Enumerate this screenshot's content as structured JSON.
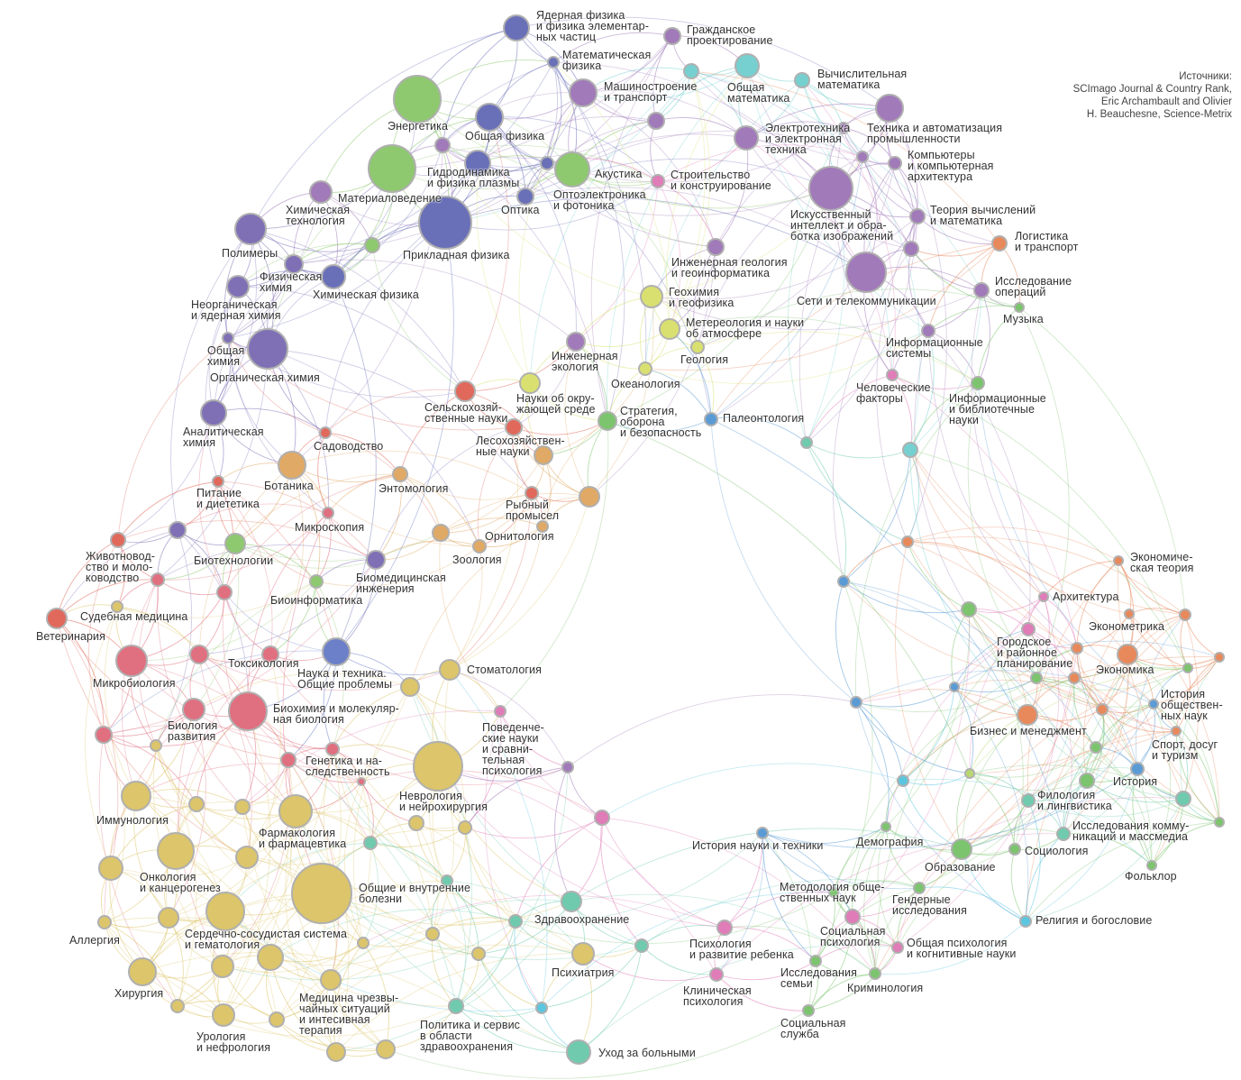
{
  "sources": "Источники:\nSCImago Journal & Country Rank,\nEric Archambault and Olivier\nH. Beauchesne, Science-Metrix",
  "palette": {
    "phys": "#6a70b8",
    "chem": "#7f70b6",
    "eng": "#a17ab9",
    "mat": "#8ec86f",
    "math": "#76d0d0",
    "earth": "#d9e070",
    "agro": "#e0695c",
    "eco": "#e0a965",
    "bio": "#e06f80",
    "sci": "#6b80c8",
    "med": "#dcc56a",
    "health": "#6fcaae",
    "psy": "#e07cb8",
    "soc": "#7cc46d",
    "econ": "#e8895c",
    "hist": "#5b9bd5",
    "lime": "#b9d870",
    "cyan": "#5bc6e0"
  },
  "nodes": [
    {
      "label": "Ядерная физика\nи физика элементар-\nных частиц",
      "group": "phys"
    },
    {
      "label": "Математическая\nфизика",
      "group": "phys"
    },
    {
      "label": "Гражданское\nпроектирование",
      "group": "eng"
    },
    {
      "label": "",
      "group": "math"
    },
    {
      "label": "Общая\nматематика",
      "group": "math"
    },
    {
      "label": "Вычислительная\nматематика",
      "group": "math"
    },
    {
      "label": "Машиностроение\nи транспорт",
      "group": "eng"
    },
    {
      "label": "Энергетика",
      "group": "mat"
    },
    {
      "label": "Общая физика",
      "group": "phys"
    },
    {
      "label": "",
      "group": "eng"
    },
    {
      "label": "Гидродинамика\nи физика плазмы",
      "group": "phys"
    },
    {
      "label": "Акустика",
      "group": "phys"
    },
    {
      "label": "Материаловедение",
      "group": "mat"
    },
    {
      "label": "Оптоэлектроника\nи фотоника",
      "group": "mat"
    },
    {
      "label": "Оптика",
      "group": "phys"
    },
    {
      "label": "Прикладная физика",
      "group": "phys"
    },
    {
      "label": "Химическая\nтехнология",
      "group": "eng"
    },
    {
      "label": "Полимеры",
      "group": "chem"
    },
    {
      "label": "",
      "group": "mat"
    },
    {
      "label": "Физическая\nхимия",
      "group": "chem"
    },
    {
      "label": "Химическая физика",
      "group": "phys"
    },
    {
      "label": "Неорганическая\nи ядерная химия",
      "group": "chem"
    },
    {
      "label": "Общая\nхимия",
      "group": "chem"
    },
    {
      "label": "Органическая химия",
      "group": "chem"
    },
    {
      "label": "Аналитическая\nхимия",
      "group": "chem"
    },
    {
      "label": "",
      "group": "eng"
    },
    {
      "label": "Строительство\nи конструирование",
      "group": "psy"
    },
    {
      "label": "Электротехника\nи электронная\nтехника",
      "group": "eng"
    },
    {
      "label": "Техника и автоматизация\nпромышленности",
      "group": "eng"
    },
    {
      "label": "",
      "group": "eng"
    },
    {
      "label": "",
      "group": "eng"
    },
    {
      "label": "Компьютеры\nи компьютерная\nархитектура",
      "group": "eng"
    },
    {
      "label": "Искусственный\nинтеллект и обра-\nботка изображений",
      "group": "eng"
    },
    {
      "label": "Теория вычислений\nи математика",
      "group": "eng"
    },
    {
      "label": "",
      "group": "eng"
    },
    {
      "label": "Сети и телекоммуникации",
      "group": "eng"
    },
    {
      "label": "Логистика\nи транспорт",
      "group": "econ"
    },
    {
      "label": "Исследование\nопераций",
      "group": "eng"
    },
    {
      "label": "Музыка",
      "group": "soc"
    },
    {
      "label": "Информационные\nсистемы",
      "group": "eng"
    },
    {
      "label": "Человеческие\nфакторы",
      "group": "psy"
    },
    {
      "label": "Информационные\nи библиотечные\nнауки",
      "group": "soc"
    },
    {
      "label": "Инженерная геология\nи геоинформатика",
      "group": "eng"
    },
    {
      "label": "Геохимия\nи геофизика",
      "group": "earth"
    },
    {
      "label": "Метереология и науки\nоб атмосфере",
      "group": "earth"
    },
    {
      "label": "Геология",
      "group": "earth"
    },
    {
      "label": "Океанология",
      "group": "earth"
    },
    {
      "label": "Палеонтология",
      "group": "hist"
    },
    {
      "label": "Науки об окру-\nжающей среде",
      "group": "earth"
    },
    {
      "label": "Стратегия,\nоборона\nи безопасность",
      "group": "soc"
    },
    {
      "label": "Инженерная\nэкология",
      "group": "eng"
    },
    {
      "label": "",
      "group": "health"
    },
    {
      "label": "",
      "group": "math"
    },
    {
      "label": "Сельскохозяй-\nственные науки",
      "group": "agro"
    },
    {
      "label": "Лесохозяйствен-\nные науки",
      "group": "agro"
    },
    {
      "label": "",
      "group": "eco"
    },
    {
      "label": "Садоводство",
      "group": "agro"
    },
    {
      "label": "Ботаника",
      "group": "eco"
    },
    {
      "label": "Энтомология",
      "group": "eco"
    },
    {
      "label": "Рыбный\nпромысел",
      "group": "agro"
    },
    {
      "label": "",
      "group": "eco"
    },
    {
      "label": "Орнитология",
      "group": "eco"
    },
    {
      "label": "",
      "group": "eco"
    },
    {
      "label": "Зоология",
      "group": "eco"
    },
    {
      "label": "Питание\nи диететика",
      "group": "agro"
    },
    {
      "label": "Микроскопия",
      "group": "bio"
    },
    {
      "label": "",
      "group": "chem"
    },
    {
      "label": "Биотехнологии",
      "group": "mat"
    },
    {
      "label": "Животновод-\nство и моло-\nководство",
      "group": "agro"
    },
    {
      "label": "",
      "group": "bio"
    },
    {
      "label": "Судебная медицина",
      "group": "med"
    },
    {
      "label": "Ветеринария",
      "group": "agro"
    },
    {
      "label": "Биомедицинская\nинженерия",
      "group": "chem"
    },
    {
      "label": "Биоинформатика",
      "group": "mat"
    },
    {
      "label": "",
      "group": "bio"
    },
    {
      "label": "Микробиология",
      "group": "bio"
    },
    {
      "label": "",
      "group": "bio"
    },
    {
      "label": "Токсикология",
      "group": "bio"
    },
    {
      "label": "Наука и техника.\nОбщие проблемы",
      "group": "sci"
    },
    {
      "label": "Стоматология",
      "group": "med"
    },
    {
      "label": "",
      "group": "med"
    },
    {
      "label": "Биология\nразвития",
      "group": "bio"
    },
    {
      "label": "Биохимия и молекуляр-\nная биология",
      "group": "bio"
    },
    {
      "label": "",
      "group": "bio"
    },
    {
      "label": "",
      "group": "med"
    },
    {
      "label": "",
      "group": "bio"
    },
    {
      "label": "Генетика и на-\nследственность",
      "group": "bio"
    },
    {
      "label": "",
      "group": "bio"
    },
    {
      "label": "Неврология\nи нейрохирургия",
      "group": "med"
    },
    {
      "label": "Поведенче-\nские науки\nи сравни-\nтельная\nпсихология",
      "group": "psy"
    },
    {
      "label": "",
      "group": "eng"
    },
    {
      "label": "",
      "group": "psy"
    },
    {
      "label": "Иммунология",
      "group": "med"
    },
    {
      "label": "",
      "group": "med"
    },
    {
      "label": "",
      "group": "med"
    },
    {
      "label": "Фармакология\nи фармацевтика",
      "group": "med"
    },
    {
      "label": "",
      "group": "med"
    },
    {
      "label": "",
      "group": "med"
    },
    {
      "label": "Онкология\nи канцерогенез",
      "group": "med"
    },
    {
      "label": "",
      "group": "med"
    },
    {
      "label": "",
      "group": "med"
    },
    {
      "label": "",
      "group": "health"
    },
    {
      "label": "Общие и внутренние\nболезни",
      "group": "med"
    },
    {
      "label": "",
      "group": "health"
    },
    {
      "label": "Аллергия",
      "group": "med"
    },
    {
      "label": "",
      "group": "med"
    },
    {
      "label": "Сердечно-сосудистая система\nи гематология",
      "group": "med"
    },
    {
      "label": "",
      "group": "med"
    },
    {
      "label": "",
      "group": "med"
    },
    {
      "label": "",
      "group": "med"
    },
    {
      "label": "",
      "group": "med"
    },
    {
      "label": "Хирургия",
      "group": "med"
    },
    {
      "label": "Медицина чрезвы-\nчайных ситуаций\nи интесивная\nтерапия",
      "group": "med"
    },
    {
      "label": "",
      "group": "med"
    },
    {
      "label": "",
      "group": "med"
    },
    {
      "label": "Урология\nи нефрология",
      "group": "med"
    },
    {
      "label": "",
      "group": "med"
    },
    {
      "label": "",
      "group": "med"
    },
    {
      "label": "",
      "group": "med"
    },
    {
      "label": "Здравоохранение",
      "group": "health"
    },
    {
      "label": "",
      "group": "health"
    },
    {
      "label": "Психиатрия",
      "group": "med"
    },
    {
      "label": "",
      "group": "health"
    },
    {
      "label": "Политика и сервис\nв области\nздравоохранения",
      "group": "health"
    },
    {
      "label": "",
      "group": "cyan"
    },
    {
      "label": "Уход за больными",
      "group": "health"
    },
    {
      "label": "Психология\nи развитие ребенка",
      "group": "psy"
    },
    {
      "label": "Клиническая\nпсихология",
      "group": "psy"
    },
    {
      "label": "Методология обще-\nственных наук",
      "group": "soc"
    },
    {
      "label": "Социальная\nпсихология",
      "group": "psy"
    },
    {
      "label": "Гендерные\nисследования",
      "group": "soc"
    },
    {
      "label": "Общая психология\nи когнитивные науки",
      "group": "psy"
    },
    {
      "label": "Исследования\nсемьи",
      "group": "soc"
    },
    {
      "label": "Криминология",
      "group": "soc"
    },
    {
      "label": "Социальная\nслужба",
      "group": "soc"
    },
    {
      "label": "История науки и техники",
      "group": "hist"
    },
    {
      "label": "Демография",
      "group": "soc"
    },
    {
      "label": "Образование",
      "group": "soc"
    },
    {
      "label": "Социология",
      "group": "soc"
    },
    {
      "label": "Религия и богословие",
      "group": "cyan"
    },
    {
      "label": "Фольклор",
      "group": "soc"
    },
    {
      "label": "Исследования комму-\nникаций и массмедиа",
      "group": "health"
    },
    {
      "label": "Филология\nи лингвистика",
      "group": "health"
    },
    {
      "label": "",
      "group": "soc"
    },
    {
      "label": "История",
      "group": "hist"
    },
    {
      "label": "",
      "group": "health"
    },
    {
      "label": "",
      "group": "soc"
    },
    {
      "label": "Бизнес и менеджмент",
      "group": "econ"
    },
    {
      "label": "",
      "group": "soc"
    },
    {
      "label": "",
      "group": "soc"
    },
    {
      "label": "",
      "group": "econ"
    },
    {
      "label": "Экономика",
      "group": "econ"
    },
    {
      "label": "Эконометрика",
      "group": "econ"
    },
    {
      "label": "Экономиче-\nская теория",
      "group": "econ"
    },
    {
      "label": "Архитектура",
      "group": "psy"
    },
    {
      "label": "Городское\nи районное\nпланирование",
      "group": "psy"
    },
    {
      "label": "",
      "group": "econ"
    },
    {
      "label": "",
      "group": "econ"
    },
    {
      "label": "",
      "group": "econ"
    },
    {
      "label": "",
      "group": "econ"
    },
    {
      "label": "",
      "group": "soc"
    },
    {
      "label": "История\nобществен-\nных наук",
      "group": "hist"
    },
    {
      "label": "Спорт, досуг\nи туризм",
      "group": "econ"
    },
    {
      "label": "",
      "group": "soc"
    },
    {
      "label": "",
      "group": "econ"
    },
    {
      "label": "",
      "group": "hist"
    },
    {
      "label": "",
      "group": "hist"
    },
    {
      "label": "",
      "group": "hist"
    },
    {
      "label": "",
      "group": "cyan"
    },
    {
      "label": "",
      "group": "lime"
    }
  ]
}
